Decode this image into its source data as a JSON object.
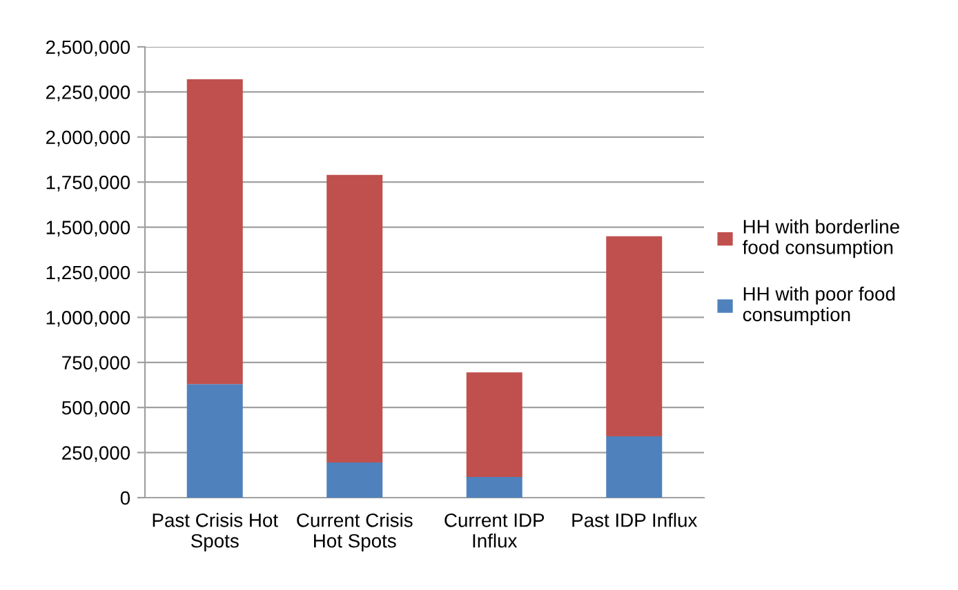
{
  "chart_data": {
    "type": "bar",
    "stacked": true,
    "categories": [
      "Past Crisis Hot\nSpots",
      "Current Crisis\nHot Spots",
      "Current IDP\nInflux",
      "Past IDP Influx"
    ],
    "series": [
      {
        "name": "HH with poor food\nconsumption",
        "color": "#4f81bd",
        "values": [
          630000,
          195000,
          115000,
          340000
        ]
      },
      {
        "name": "HH with borderline\nfood consumption",
        "color": "#c0504d",
        "values": [
          1690000,
          1595000,
          580000,
          1110000
        ]
      }
    ],
    "ylim": [
      0,
      2500000
    ],
    "yticks": [
      {
        "value": 0,
        "label": "0"
      },
      {
        "value": 250000,
        "label": "250,000"
      },
      {
        "value": 500000,
        "label": "500,000"
      },
      {
        "value": 750000,
        "label": "750,000"
      },
      {
        "value": 1000000,
        "label": "1,000,000"
      },
      {
        "value": 1250000,
        "label": "1,250,000"
      },
      {
        "value": 1500000,
        "label": "1,500,000"
      },
      {
        "value": 1750000,
        "label": "1,750,000"
      },
      {
        "value": 2000000,
        "label": "2,000,000"
      },
      {
        "value": 2250000,
        "label": "2,250,000"
      },
      {
        "value": 2500000,
        "label": "2,500,000"
      }
    ],
    "grid": "y",
    "legend": "right"
  }
}
